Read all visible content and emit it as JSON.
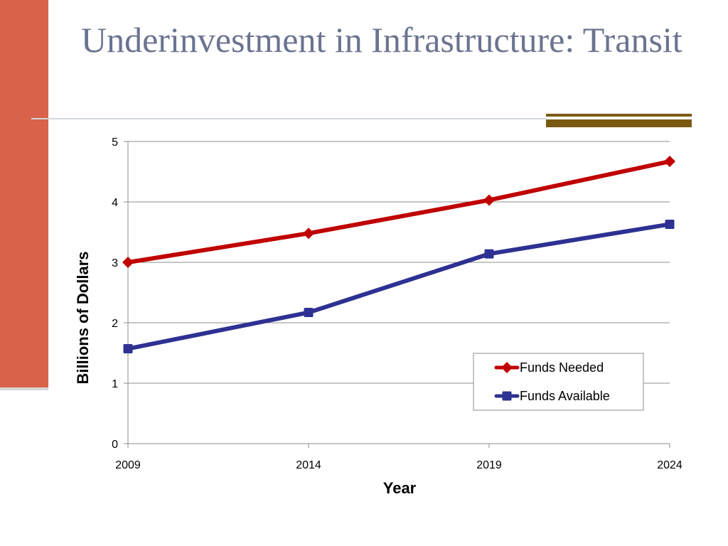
{
  "slide": {
    "title": "Underinvestment in Infrastructure: Transit",
    "colors": {
      "left_bar": "#d9624a",
      "title": "#6b7390",
      "accent_lines": "#7a5a12"
    }
  },
  "chart_data": {
    "type": "line",
    "x": [
      "2009",
      "2014",
      "2019",
      "2024"
    ],
    "series": [
      {
        "name": "Funds Needed",
        "values": [
          3.0,
          3.48,
          4.03,
          4.67
        ],
        "color": "#c00000",
        "marker": "diamond"
      },
      {
        "name": "Funds Available",
        "values": [
          1.57,
          2.17,
          3.14,
          3.63
        ],
        "color": "#2e3192",
        "marker": "square"
      }
    ],
    "xlabel": "Year",
    "ylabel": "Billions of Dollars",
    "ylim": [
      0,
      5
    ],
    "yticks": [
      "0",
      "1",
      "2",
      "3",
      "4",
      "5"
    ],
    "grid": true,
    "legend_position": "lower-right"
  }
}
